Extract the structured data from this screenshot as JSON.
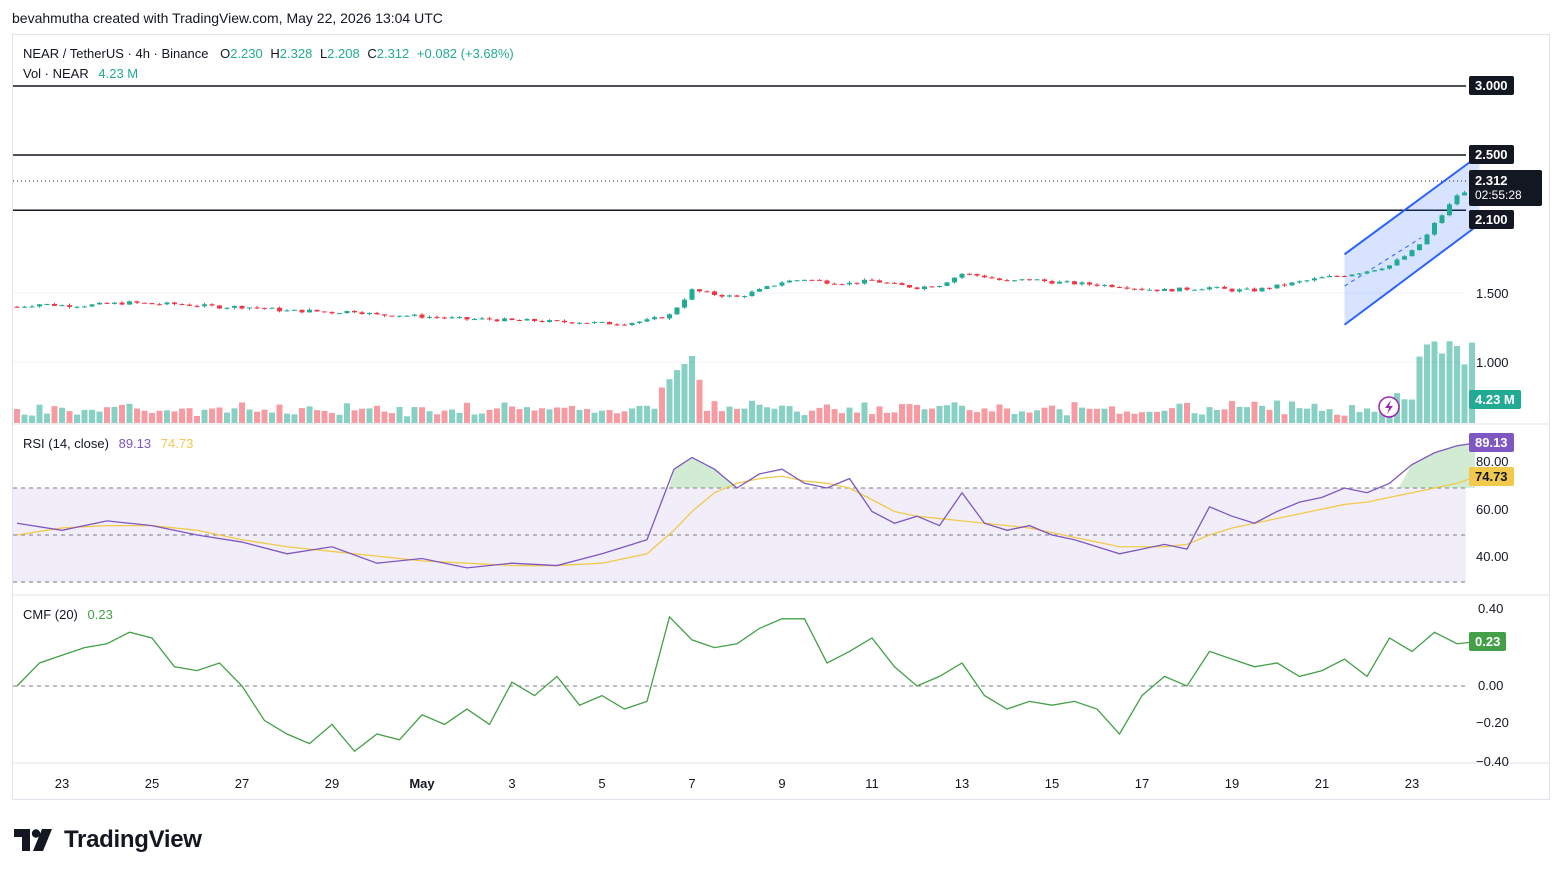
{
  "header": {
    "credit": "bevahmutha created with TradingView.com, May 22, 2026 13:04 UTC"
  },
  "legend": {
    "symbol": "NEAR / TetherUS · 4h · Binance",
    "o_label": "O",
    "o_value": "2.230",
    "h_label": "H",
    "h_value": "2.328",
    "l_label": "L",
    "l_value": "2.208",
    "c_label": "C",
    "c_value": "2.312",
    "change": "+0.082 (+3.68%)",
    "vol_label": "Vol · NEAR",
    "vol_value": "4.23 M"
  },
  "price_axis": {
    "labels": [
      "1.500",
      "1.000"
    ],
    "level_3000": "3.000",
    "level_2500": "2.500",
    "last_price": "2.312",
    "countdown": "02:55:28",
    "level_2100": "2.100",
    "volume_tag": "4.23 M"
  },
  "rsi": {
    "label": "RSI (14, close)",
    "value": "89.13",
    "ma_value": "74.73",
    "axis": [
      "80.00",
      "60.00",
      "40.00"
    ]
  },
  "cmf": {
    "label": "CMF (20)",
    "value": "0.23",
    "axis": [
      "0.40",
      "0.00",
      "−0.20",
      "−0.40"
    ]
  },
  "dates": [
    "23",
    "25",
    "27",
    "29",
    "May",
    "3",
    "5",
    "7",
    "9",
    "11",
    "13",
    "15",
    "17",
    "19",
    "21",
    "23"
  ],
  "brand": {
    "name": "TradingView"
  },
  "colors": {
    "up": "#22ab94",
    "down": "#f23645",
    "rsi": "#7e57c2",
    "rsi_ma": "#f2c94c",
    "cmf": "#43a047",
    "channel": "#2962ff",
    "level": "#131722"
  },
  "chart_data": [
    {
      "type": "candlestick",
      "title": "NEAR / TetherUS · 4h · Binance",
      "x_range": [
        "Apr 22",
        "May 22"
      ],
      "x_ticks": [
        "23",
        "25",
        "27",
        "29",
        "May",
        "3",
        "5",
        "7",
        "9",
        "11",
        "13",
        "15",
        "17",
        "19",
        "21",
        "23"
      ],
      "ylim": [
        0.8,
        3.1
      ],
      "horizontal_levels": [
        3.0,
        2.5,
        2.1
      ],
      "ohlc_last": {
        "open": 2.23,
        "high": 2.328,
        "low": 2.208,
        "close": 2.312,
        "change": 0.082,
        "change_pct": 3.68
      },
      "close_path": [
        [
          22.0,
          1.4
        ],
        [
          22.5,
          1.42
        ],
        [
          23.0,
          1.41
        ],
        [
          23.5,
          1.41
        ],
        [
          24.0,
          1.42
        ],
        [
          24.5,
          1.43
        ],
        [
          25.0,
          1.42
        ],
        [
          25.5,
          1.42
        ],
        [
          26.0,
          1.41
        ],
        [
          26.5,
          1.4
        ],
        [
          27.0,
          1.4
        ],
        [
          27.5,
          1.39
        ],
        [
          28.0,
          1.37
        ],
        [
          28.5,
          1.37
        ],
        [
          29.0,
          1.36
        ],
        [
          29.5,
          1.37
        ],
        [
          30.0,
          1.34
        ],
        [
          30.5,
          1.34
        ],
        [
          31.0,
          1.33
        ],
        [
          31.5,
          1.32
        ],
        [
          32.0,
          1.31
        ],
        [
          32.5,
          1.31
        ],
        [
          33.0,
          1.3
        ],
        [
          33.5,
          1.3
        ],
        [
          34.0,
          1.29
        ],
        [
          34.5,
          1.29
        ],
        [
          35.0,
          1.28
        ],
        [
          35.5,
          1.28
        ],
        [
          36.0,
          1.3
        ],
        [
          36.5,
          1.34
        ],
        [
          37.0,
          1.52
        ],
        [
          37.5,
          1.49
        ],
        [
          38.0,
          1.47
        ],
        [
          38.5,
          1.52
        ],
        [
          39.0,
          1.58
        ],
        [
          39.5,
          1.6
        ],
        [
          40.0,
          1.58
        ],
        [
          40.5,
          1.57
        ],
        [
          41.0,
          1.59
        ],
        [
          41.5,
          1.56
        ],
        [
          42.0,
          1.54
        ],
        [
          42.5,
          1.56
        ],
        [
          43.0,
          1.64
        ],
        [
          43.5,
          1.62
        ],
        [
          44.0,
          1.58
        ],
        [
          44.5,
          1.6
        ],
        [
          45.0,
          1.58
        ],
        [
          45.5,
          1.57
        ],
        [
          46.0,
          1.56
        ],
        [
          46.5,
          1.55
        ],
        [
          47.0,
          1.53
        ],
        [
          47.5,
          1.52
        ],
        [
          48.0,
          1.53
        ],
        [
          48.5,
          1.54
        ],
        [
          49.0,
          1.52
        ],
        [
          49.5,
          1.52
        ],
        [
          50.0,
          1.55
        ],
        [
          50.5,
          1.58
        ],
        [
          51.0,
          1.61
        ],
        [
          51.5,
          1.63
        ],
        [
          52.0,
          1.66
        ],
        [
          52.5,
          1.7
        ],
        [
          53.0,
          1.8
        ],
        [
          53.25,
          1.88
        ],
        [
          53.5,
          2.0
        ],
        [
          53.75,
          2.1
        ],
        [
          54.0,
          2.21
        ],
        [
          54.25,
          2.23
        ],
        [
          54.4,
          2.31
        ]
      ]
    },
    {
      "type": "bar",
      "title": "Vol · NEAR",
      "last_value": "4.23 M"
    },
    {
      "type": "line",
      "title": "RSI (14, close)",
      "ylim": [
        30,
        95
      ],
      "bands": [
        70,
        50,
        30
      ],
      "series": [
        {
          "name": "RSI",
          "last": 89.13,
          "values": [
            [
              22,
              55
            ],
            [
              23,
              52
            ],
            [
              24,
              56
            ],
            [
              25,
              54
            ],
            [
              26,
              50
            ],
            [
              27,
              47
            ],
            [
              28,
              42
            ],
            [
              29,
              45
            ],
            [
              30,
              38
            ],
            [
              31,
              40
            ],
            [
              32,
              36
            ],
            [
              33,
              38
            ],
            [
              34,
              37
            ],
            [
              35,
              42
            ],
            [
              36,
              48
            ],
            [
              36.6,
              78
            ],
            [
              37,
              83
            ],
            [
              37.5,
              78
            ],
            [
              38,
              70
            ],
            [
              38.5,
              76
            ],
            [
              39,
              78
            ],
            [
              39.5,
              72
            ],
            [
              40,
              70
            ],
            [
              40.5,
              74
            ],
            [
              41,
              60
            ],
            [
              41.5,
              55
            ],
            [
              42,
              58
            ],
            [
              42.5,
              54
            ],
            [
              43,
              68
            ],
            [
              43.5,
              55
            ],
            [
              44,
              52
            ],
            [
              44.5,
              54
            ],
            [
              45,
              50
            ],
            [
              45.5,
              48
            ],
            [
              46,
              45
            ],
            [
              46.5,
              42
            ],
            [
              47,
              44
            ],
            [
              47.5,
              46
            ],
            [
              48,
              44
            ],
            [
              48.5,
              62
            ],
            [
              49,
              58
            ],
            [
              49.5,
              55
            ],
            [
              50,
              60
            ],
            [
              50.5,
              64
            ],
            [
              51,
              66
            ],
            [
              51.5,
              70
            ],
            [
              52,
              68
            ],
            [
              52.5,
              72
            ],
            [
              53,
              80
            ],
            [
              53.5,
              85
            ],
            [
              54,
              88
            ],
            [
              54.4,
              89.13
            ]
          ]
        },
        {
          "name": "RSI-based MA",
          "last": 74.73,
          "values": [
            [
              22,
              50
            ],
            [
              23,
              53
            ],
            [
              24,
              54
            ],
            [
              25,
              54
            ],
            [
              26,
              52
            ],
            [
              27,
              48
            ],
            [
              28,
              45
            ],
            [
              29,
              43
            ],
            [
              30,
              41
            ],
            [
              31,
              39
            ],
            [
              32,
              38
            ],
            [
              33,
              37
            ],
            [
              34,
              37
            ],
            [
              35,
              38
            ],
            [
              36,
              42
            ],
            [
              36.6,
              52
            ],
            [
              37,
              60
            ],
            [
              37.5,
              68
            ],
            [
              38,
              72
            ],
            [
              38.5,
              74
            ],
            [
              39,
              75
            ],
            [
              39.5,
              73
            ],
            [
              40,
              72
            ],
            [
              40.5,
              70
            ],
            [
              41,
              65
            ],
            [
              41.5,
              60
            ],
            [
              42,
              58
            ],
            [
              42.5,
              57
            ],
            [
              43,
              56
            ],
            [
              43.5,
              55
            ],
            [
              44,
              54
            ],
            [
              44.5,
              53
            ],
            [
              45,
              51
            ],
            [
              45.5,
              49
            ],
            [
              46,
              47
            ],
            [
              46.5,
              45
            ],
            [
              47,
              45
            ],
            [
              47.5,
              45
            ],
            [
              48,
              46
            ],
            [
              48.5,
              50
            ],
            [
              49,
              53
            ],
            [
              49.5,
              55
            ],
            [
              50,
              57
            ],
            [
              50.5,
              59
            ],
            [
              51,
              61
            ],
            [
              51.5,
              63
            ],
            [
              52,
              64
            ],
            [
              52.5,
              66
            ],
            [
              53,
              68
            ],
            [
              53.5,
              70
            ],
            [
              54,
              72
            ],
            [
              54.4,
              74.73
            ]
          ]
        }
      ]
    },
    {
      "type": "line",
      "title": "CMF (20)",
      "ylim": [
        -0.4,
        0.45
      ],
      "series": [
        {
          "name": "CMF",
          "last": 0.23,
          "values": [
            [
              22,
              0.0
            ],
            [
              22.5,
              0.12
            ],
            [
              23,
              0.16
            ],
            [
              23.5,
              0.2
            ],
            [
              24,
              0.22
            ],
            [
              24.5,
              0.28
            ],
            [
              25,
              0.25
            ],
            [
              25.5,
              0.1
            ],
            [
              26,
              0.08
            ],
            [
              26.5,
              0.12
            ],
            [
              27,
              0.0
            ],
            [
              27.5,
              -0.18
            ],
            [
              28,
              -0.25
            ],
            [
              28.5,
              -0.3
            ],
            [
              29,
              -0.2
            ],
            [
              29.5,
              -0.34
            ],
            [
              30,
              -0.25
            ],
            [
              30.5,
              -0.28
            ],
            [
              31,
              -0.15
            ],
            [
              31.5,
              -0.2
            ],
            [
              32,
              -0.12
            ],
            [
              32.5,
              -0.2
            ],
            [
              33,
              0.02
            ],
            [
              33.5,
              -0.05
            ],
            [
              34,
              0.05
            ],
            [
              34.5,
              -0.1
            ],
            [
              35,
              -0.05
            ],
            [
              35.5,
              -0.12
            ],
            [
              36,
              -0.08
            ],
            [
              36.5,
              0.36
            ],
            [
              37,
              0.24
            ],
            [
              37.5,
              0.2
            ],
            [
              38,
              0.22
            ],
            [
              38.5,
              0.3
            ],
            [
              39,
              0.35
            ],
            [
              39.5,
              0.35
            ],
            [
              40,
              0.12
            ],
            [
              40.5,
              0.18
            ],
            [
              41,
              0.25
            ],
            [
              41.5,
              0.1
            ],
            [
              42,
              0.0
            ],
            [
              42.5,
              0.05
            ],
            [
              43,
              0.12
            ],
            [
              43.5,
              -0.05
            ],
            [
              44,
              -0.12
            ],
            [
              44.5,
              -0.08
            ],
            [
              45,
              -0.1
            ],
            [
              45.5,
              -0.08
            ],
            [
              46,
              -0.12
            ],
            [
              46.5,
              -0.25
            ],
            [
              47,
              -0.05
            ],
            [
              47.5,
              0.05
            ],
            [
              48,
              0.0
            ],
            [
              48.5,
              0.18
            ],
            [
              49,
              0.14
            ],
            [
              49.5,
              0.1
            ],
            [
              50,
              0.12
            ],
            [
              50.5,
              0.05
            ],
            [
              51,
              0.08
            ],
            [
              51.5,
              0.14
            ],
            [
              52,
              0.05
            ],
            [
              52.5,
              0.25
            ],
            [
              53,
              0.18
            ],
            [
              53.5,
              0.28
            ],
            [
              54,
              0.22
            ],
            [
              54.4,
              0.23
            ]
          ]
        }
      ]
    }
  ]
}
